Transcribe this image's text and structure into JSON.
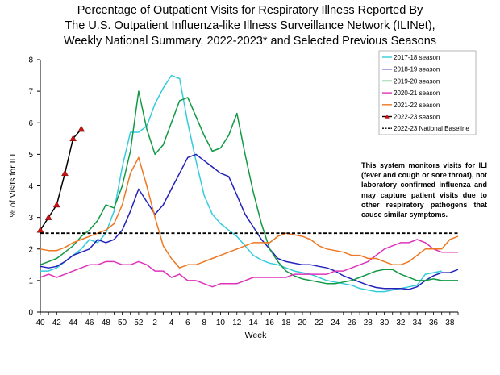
{
  "title_lines": [
    "Percentage of Outpatient Visits for Respiratory Illness Reported By",
    "The U.S. Outpatient Influenza-like Illness Surveillance Network (ILINet),",
    "Weekly National Summary, 2022-2023* and Selected Previous Seasons"
  ],
  "note": "This system monitors visits for ILI (fever and cough or sore throat), not laboratory confirmed influenza and may capture patient visits due to other respiratory pathogens that cause similar symptoms.",
  "chart_data": {
    "type": "line",
    "xlabel": "Week",
    "ylabel": "% of Visits for ILI",
    "ylim": [
      0,
      8
    ],
    "yticks": [
      0,
      1,
      2,
      3,
      4,
      5,
      6,
      7,
      8
    ],
    "x_tick_labels": [
      "40",
      "42",
      "44",
      "46",
      "48",
      "50",
      "52",
      "2",
      "4",
      "6",
      "8",
      "10",
      "12",
      "14",
      "16",
      "18",
      "20",
      "22",
      "24",
      "26",
      "28",
      "30",
      "32",
      "34",
      "36",
      "38"
    ],
    "grid": false,
    "legend_position": "top-right",
    "baseline": {
      "name": "2022-23 National Baseline",
      "value": 2.5,
      "color": "#000000"
    },
    "series": [
      {
        "name": "2017-18 season",
        "color": "#33CCDD",
        "marker": "none",
        "values": [
          1.3,
          1.3,
          1.4,
          1.6,
          1.8,
          2.0,
          2.3,
          2.2,
          2.5,
          3.2,
          4.6,
          5.7,
          5.7,
          5.9,
          6.6,
          7.1,
          7.5,
          7.4,
          6.0,
          4.8,
          3.7,
          3.1,
          2.8,
          2.6,
          2.4,
          2.1,
          1.8,
          1.65,
          1.55,
          1.5,
          1.4,
          1.3,
          1.25,
          1.2,
          1.1,
          1.0,
          0.95,
          0.9,
          0.85,
          0.75,
          0.7,
          0.65,
          0.65,
          0.7,
          0.75,
          0.8,
          0.85,
          1.2,
          1.25,
          1.3
        ]
      },
      {
        "name": "2018-19 season",
        "color": "#2222BB",
        "marker": "none",
        "values": [
          1.45,
          1.4,
          1.45,
          1.6,
          1.8,
          1.9,
          2.0,
          2.3,
          2.2,
          2.3,
          2.6,
          3.2,
          3.9,
          3.5,
          3.1,
          3.4,
          3.9,
          4.4,
          4.9,
          5.0,
          4.8,
          4.6,
          4.4,
          4.3,
          3.7,
          3.1,
          2.7,
          2.3,
          2.0,
          1.7,
          1.6,
          1.55,
          1.5,
          1.5,
          1.45,
          1.4,
          1.3,
          1.15,
          1.05,
          0.95,
          0.85,
          0.78,
          0.75,
          0.75,
          0.75,
          0.72,
          0.8,
          1.0,
          1.15,
          1.25,
          1.25,
          1.35
        ]
      },
      {
        "name": "2019-20 season",
        "color": "#119944",
        "marker": "none",
        "values": [
          1.5,
          1.6,
          1.7,
          1.9,
          2.1,
          2.4,
          2.6,
          2.9,
          3.4,
          3.3,
          4.0,
          5.1,
          7.0,
          5.8,
          5.0,
          5.3,
          6.0,
          6.7,
          6.8,
          6.2,
          5.6,
          5.1,
          5.2,
          5.6,
          6.3,
          5.0,
          3.8,
          2.8,
          2.0,
          1.6,
          1.3,
          1.15,
          1.05,
          1.0,
          0.95,
          0.9,
          0.9,
          0.95,
          1.0,
          1.1,
          1.2,
          1.3,
          1.35,
          1.35,
          1.2,
          1.1,
          1.0,
          1.0,
          1.05,
          1.0,
          1.0,
          1.0
        ]
      },
      {
        "name": "2020-21 season",
        "color": "#DD33BB",
        "marker": "none",
        "values": [
          1.1,
          1.2,
          1.1,
          1.2,
          1.3,
          1.4,
          1.5,
          1.5,
          1.6,
          1.6,
          1.5,
          1.5,
          1.6,
          1.5,
          1.3,
          1.3,
          1.1,
          1.2,
          1.0,
          1.0,
          0.9,
          0.8,
          0.9,
          0.9,
          0.9,
          1.0,
          1.1,
          1.1,
          1.1,
          1.1,
          1.1,
          1.2,
          1.2,
          1.2,
          1.2,
          1.2,
          1.3,
          1.3,
          1.4,
          1.5,
          1.6,
          1.8,
          2.0,
          2.1,
          2.2,
          2.2,
          2.3,
          2.2,
          2.0,
          1.9,
          1.9,
          1.9
        ]
      },
      {
        "name": "2021-22 season",
        "color": "#EE7722",
        "marker": "none",
        "values": [
          2.0,
          1.95,
          1.95,
          2.05,
          2.2,
          2.3,
          2.4,
          2.5,
          2.6,
          2.8,
          3.4,
          4.4,
          4.9,
          4.0,
          3.0,
          2.1,
          1.7,
          1.4,
          1.5,
          1.5,
          1.6,
          1.7,
          1.8,
          1.9,
          2.0,
          2.1,
          2.2,
          2.2,
          2.2,
          2.4,
          2.5,
          2.45,
          2.4,
          2.3,
          2.1,
          2.0,
          1.95,
          1.9,
          1.8,
          1.8,
          1.7,
          1.7,
          1.6,
          1.5,
          1.5,
          1.6,
          1.8,
          2.0,
          2.0,
          2.0,
          2.3,
          2.4
        ]
      },
      {
        "name": "2022-23 season",
        "color": "#000000",
        "marker": "triangle",
        "marker_color": "#CC1111",
        "values": [
          2.6,
          3.0,
          3.4,
          4.4,
          5.5,
          5.8
        ]
      }
    ]
  }
}
